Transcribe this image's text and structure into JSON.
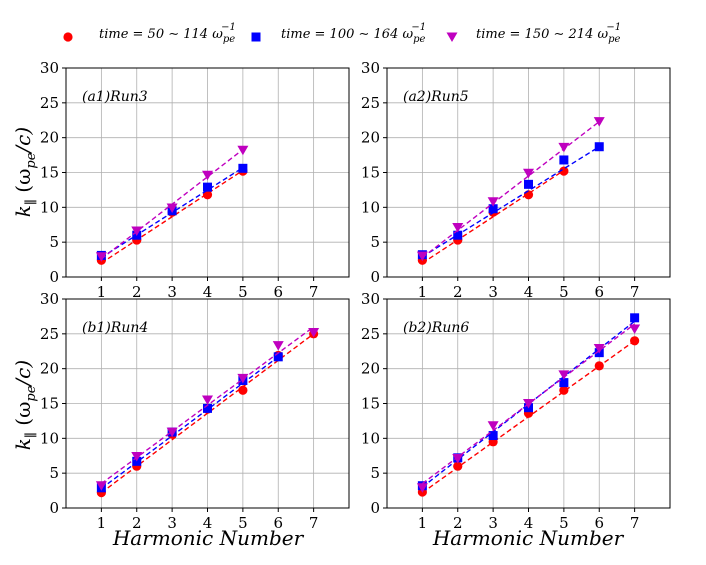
{
  "chart_data": {
    "type": "line",
    "xlabel": "Harmonic Number",
    "ylabel": "k∥ (ωpe/c)",
    "ylabel_parts": {
      "base": "k",
      "sub": "∥",
      "paren": " (ω",
      "sub2": "pe",
      "tail": "/c)"
    },
    "xlim": [
      0,
      8
    ],
    "ylim": [
      0,
      30
    ],
    "x_ticks": [
      1,
      2,
      3,
      4,
      5,
      6,
      7
    ],
    "y_ticks": [
      0,
      5,
      10,
      15,
      20,
      25,
      30
    ],
    "grid": true,
    "legend_position": "top",
    "legend": [
      {
        "label": "time = 50 ∼ 114 ω",
        "sup": "−1",
        "sub": "pe",
        "marker": "circle",
        "color": "#ff0000"
      },
      {
        "label": "time = 100 ∼ 164 ω",
        "sup": "−1",
        "sub": "pe",
        "marker": "square",
        "color": "#0000ff"
      },
      {
        "label": "time = 150 ∼ 214 ω",
        "sup": "−1",
        "sub": "pe",
        "marker": "triangle-down",
        "color": "#bf00bf"
      }
    ],
    "panels": [
      {
        "label": "(a1)Run3",
        "series": [
          {
            "name": "time = 50 ∼ 114",
            "x": [
              1,
              2,
              3,
              4,
              5
            ],
            "y": [
              2.4,
              5.3,
              9.3,
              11.8,
              15.2
            ],
            "fit": [
              2.0,
              15.3
            ]
          },
          {
            "name": "time = 100 ∼ 164",
            "x": [
              1,
              2,
              3,
              4,
              5
            ],
            "y": [
              3.1,
              6.0,
              9.5,
              12.9,
              15.6
            ],
            "fit": [
              2.8,
              15.7
            ]
          },
          {
            "name": "time = 150 ∼ 214",
            "x": [
              1,
              2,
              3,
              4,
              5
            ],
            "y": [
              2.9,
              6.6,
              9.9,
              14.6,
              18.2
            ],
            "fit": [
              2.6,
              18.3
            ]
          }
        ]
      },
      {
        "label": "(a2)Run5",
        "series": [
          {
            "name": "time = 50 ∼ 114",
            "x": [
              1,
              2,
              3,
              4,
              5
            ],
            "y": [
              2.4,
              5.3,
              9.3,
              11.8,
              15.2
            ],
            "fit": [
              2.0,
              15.3
            ]
          },
          {
            "name": "time = 100 ∼ 164",
            "x": [
              1,
              2,
              3,
              4,
              5,
              6
            ],
            "y": [
              3.2,
              6.0,
              9.8,
              13.3,
              16.8,
              18.7
            ],
            "fit": [
              2.9,
              18.7
            ]
          },
          {
            "name": "time = 150 ∼ 214",
            "x": [
              1,
              2,
              3,
              4,
              5,
              6
            ],
            "y": [
              3.0,
              7.1,
              10.8,
              14.9,
              18.6,
              22.3
            ],
            "fit": [
              2.8,
              22.3
            ]
          }
        ]
      },
      {
        "label": "(b1)Run4",
        "series": [
          {
            "name": "time = 50 ∼ 114",
            "x": [
              1,
              2,
              3,
              4,
              5,
              6,
              7
            ],
            "y": [
              2.2,
              6.0,
              10.6,
              14.2,
              16.9,
              21.9,
              25.0
            ],
            "fit": [
              2.2,
              25.0
            ]
          },
          {
            "name": "time = 100 ∼ 164",
            "x": [
              1,
              2,
              3,
              4,
              5,
              6
            ],
            "y": [
              2.9,
              6.7,
              10.9,
              14.3,
              18.3,
              21.7
            ],
            "fit": [
              2.8,
              21.7
            ]
          },
          {
            "name": "time = 150 ∼ 214",
            "x": [
              1,
              2,
              3,
              4,
              5,
              6,
              7
            ],
            "y": [
              3.2,
              7.4,
              10.9,
              15.5,
              18.6,
              23.3,
              25.2
            ],
            "fit": [
              3.5,
              26.0
            ]
          }
        ]
      },
      {
        "label": "(b2)Run6",
        "series": [
          {
            "name": "time = 50 ∼ 114",
            "x": [
              1,
              2,
              3,
              4,
              5,
              6,
              7
            ],
            "y": [
              2.3,
              6.0,
              9.5,
              13.6,
              16.9,
              20.4,
              24.0
            ],
            "fit": [
              2.2,
              24.0
            ]
          },
          {
            "name": "time = 100 ∼ 164",
            "x": [
              1,
              2,
              3,
              4,
              5,
              6,
              7
            ],
            "y": [
              3.2,
              7.2,
              10.4,
              14.4,
              18.0,
              22.3,
              27.3
            ],
            "fit": [
              3.0,
              26.8
            ]
          },
          {
            "name": "time = 150 ∼ 214",
            "x": [
              1,
              2,
              3,
              4,
              5,
              6,
              7
            ],
            "y": [
              2.9,
              7.1,
              11.8,
              15.0,
              19.1,
              22.9,
              25.7
            ],
            "fit": [
              3.5,
              26.4
            ]
          }
        ]
      }
    ]
  }
}
